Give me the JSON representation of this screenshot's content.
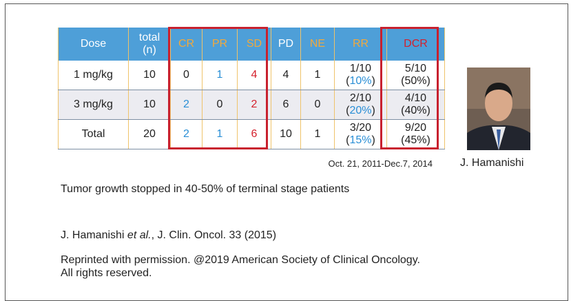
{
  "table": {
    "header": [
      "Dose",
      "total (n)",
      "CR",
      "PR",
      "SD",
      "PD",
      "NE",
      "RR",
      "DCR"
    ],
    "header_colors": [
      "#ffffff",
      "#ffffff",
      "#f2a93b",
      "#f2a93b",
      "#f2a93b",
      "#ffffff",
      "#f2a93b",
      "#f2a93b",
      "#d4202c"
    ],
    "rows": [
      [
        "1 mg/kg",
        "10",
        "0",
        {
          "text": "1",
          "color": "#2a8fd6"
        },
        {
          "text": "4",
          "color": "#d4202c"
        },
        "4",
        "1",
        {
          "lines": [
            [
              "1/10"
            ],
            [
              "(",
              {
                "text": "10%",
                "color": "#2a8fd6"
              },
              ")"
            ]
          ]
        },
        {
          "lines": [
            [
              "5/10"
            ],
            [
              "(50%)"
            ]
          ]
        }
      ],
      [
        "3 mg/kg",
        "10",
        {
          "text": "2",
          "color": "#2a8fd6"
        },
        "0",
        {
          "text": "2",
          "color": "#d4202c"
        },
        "6",
        "0",
        {
          "lines": [
            [
              "2/10"
            ],
            [
              "(",
              {
                "text": "20%",
                "color": "#2a8fd6"
              },
              ")"
            ]
          ]
        },
        {
          "lines": [
            [
              "4/10"
            ],
            [
              "(40%)"
            ]
          ]
        }
      ],
      [
        "Total",
        "20",
        {
          "text": "2",
          "color": "#2a8fd6"
        },
        {
          "text": "1",
          "color": "#2a8fd6"
        },
        {
          "text": "6",
          "color": "#d4202c"
        },
        "10",
        "1",
        {
          "lines": [
            [
              "3/20"
            ],
            [
              "(",
              {
                "text": "15%",
                "color": "#2a8fd6"
              },
              ")"
            ]
          ]
        },
        {
          "lines": [
            [
              "9/20"
            ],
            [
              "(45%)"
            ]
          ]
        }
      ]
    ]
  },
  "date_range": "Oct. 21, 2011-Dec.7, 2014",
  "photo_caption": "J. Hamanishi",
  "summary": "Tumor growth stopped in 40-50% of terminal stage patients",
  "citation": [
    "J. Hamanishi ",
    "et al.",
    ", J. Clin. Oncol. 33 (2015)"
  ],
  "permission": [
    "Reprinted with permission. @2019 American Society of Clinical Oncology.",
    "All rights reserved."
  ]
}
